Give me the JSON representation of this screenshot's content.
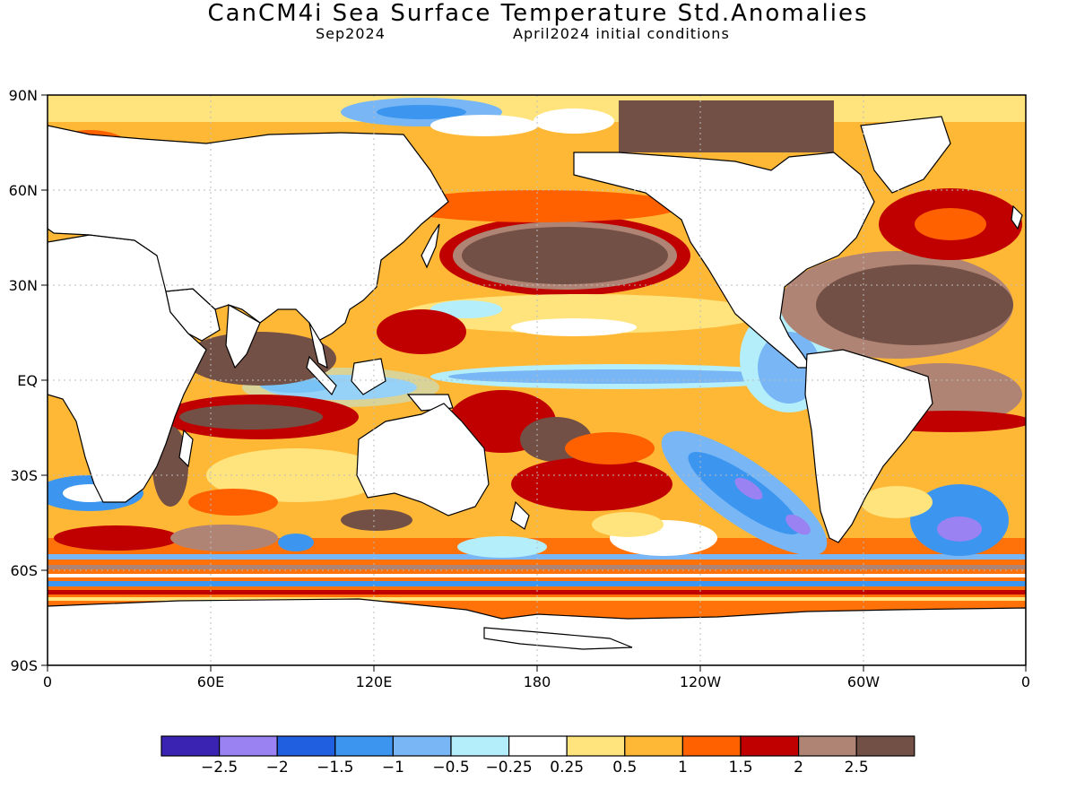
{
  "header": {
    "title": "CanCM4i Sea Surface Temperature Std.Anomalies",
    "valid_month": "Sep2024",
    "init_info": "April2024 initial conditions"
  },
  "axes": {
    "lat_labels": [
      "90N",
      "60N",
      "30N",
      "EQ",
      "30S",
      "60S",
      "90S"
    ],
    "lon_labels": [
      "0",
      "60E",
      "120E",
      "180",
      "120W",
      "60W",
      "0"
    ]
  },
  "colorbar": {
    "colors": [
      "#3a22b3",
      "#9a82f2",
      "#2060e0",
      "#3c96f0",
      "#78b6f5",
      "#b4eefa",
      "#ffffff",
      "#ffe47e",
      "#ffb835",
      "#ff6000",
      "#c00000",
      "#b08474",
      "#735046"
    ],
    "labels": [
      "−2.5",
      "−2",
      "−1.5",
      "−1",
      "−0.5",
      "−0.25",
      "0.25",
      "0.5",
      "1",
      "1.5",
      "2",
      "2.5"
    ]
  },
  "colors": {
    "land": "#ffffff",
    "coast": "#000000",
    "grid": "#bbbbbb"
  }
}
